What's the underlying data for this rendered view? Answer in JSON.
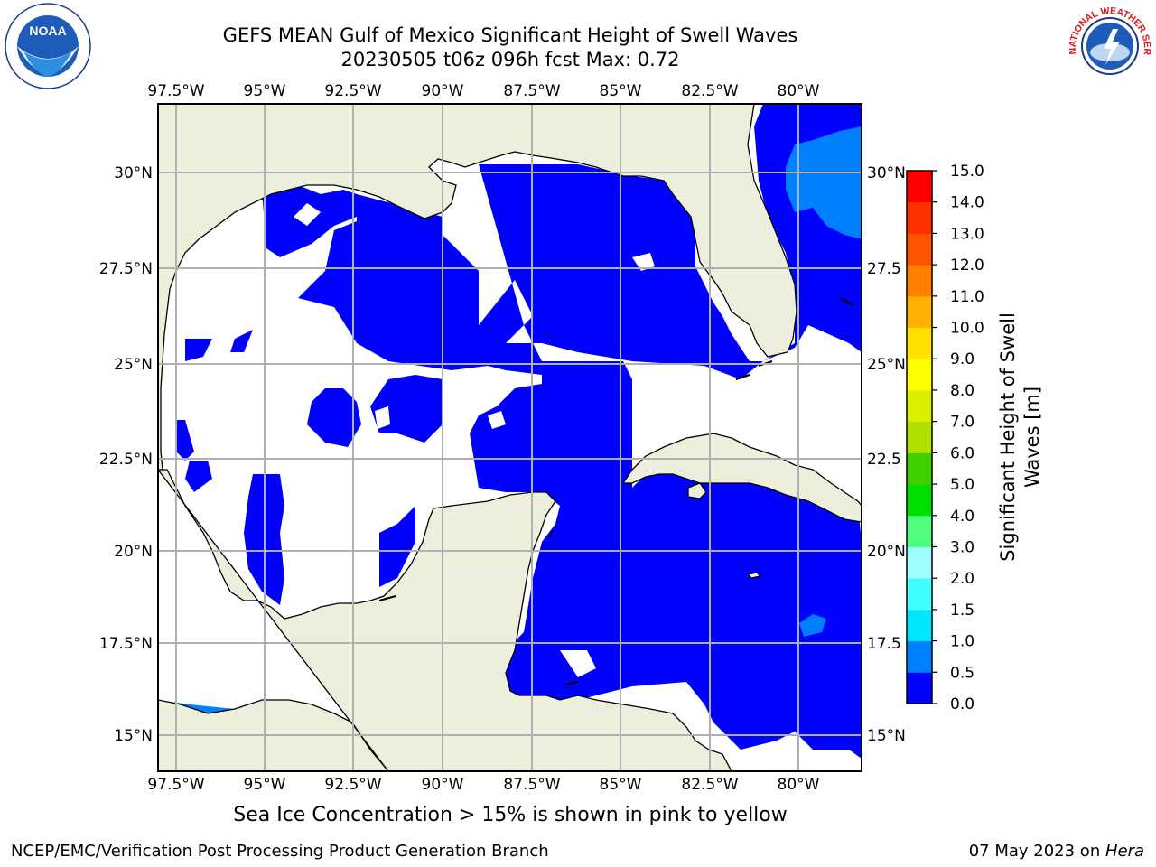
{
  "title_line1": "GEFS MEAN Gulf of Mexico Significant Height of Swell Waves",
  "title_line2": "20230505 t06z 096h fcst   Max: 0.72",
  "map": {
    "lon_labels": [
      "97.5°W",
      "95°W",
      "92.5°W",
      "90°W",
      "87.5°W",
      "85°W",
      "82.5°W",
      "80°W"
    ],
    "lat_labels_left": [
      "30°N",
      "27.5°N",
      "25°N",
      "22.5°N",
      "20°N",
      "17.5°N",
      "15°N"
    ],
    "lat_labels_right": [
      "30°N",
      "27.5",
      "25°N",
      "22.5",
      "20°N",
      "17.5",
      "15°N"
    ],
    "land_color": "#EEEEDD",
    "ocean_color": "#0000FF",
    "grid_color": "#B0B0B0"
  },
  "colorbar": {
    "title": "Significant Height of Swell Waves [m]",
    "title_line1": "Significant Height of Swell",
    "title_line2": "Waves [m]",
    "ticks": [
      "0.0",
      "0.5",
      "1.0",
      "1.5",
      "2.0",
      "3.0",
      "4.0",
      "5.0",
      "6.0",
      "7.0",
      "8.0",
      "9.0",
      "10.0",
      "11.0",
      "12.0",
      "13.0",
      "14.0",
      "15.0"
    ],
    "colors": [
      "#0000FF",
      "#0080FF",
      "#00E5FF",
      "#40FFFF",
      "#9FFFFF",
      "#50FF80",
      "#00E000",
      "#40D000",
      "#B0E000",
      "#D8F000",
      "#FFFF00",
      "#FFE000",
      "#FFB000",
      "#FF8000",
      "#FF5500",
      "#FF3000",
      "#FF0000"
    ]
  },
  "note": "Sea Ice Concentration > 15% is shown in pink to yellow",
  "footer_left": "NCEP/EMC/Verification Post Processing Product Generation Branch",
  "footer_date": "07 May 2023 on ",
  "footer_host": "Hera",
  "logos": {
    "noaa_text": "NOAA",
    "nws_text": "NATIONAL WEATHER SERVICE"
  }
}
